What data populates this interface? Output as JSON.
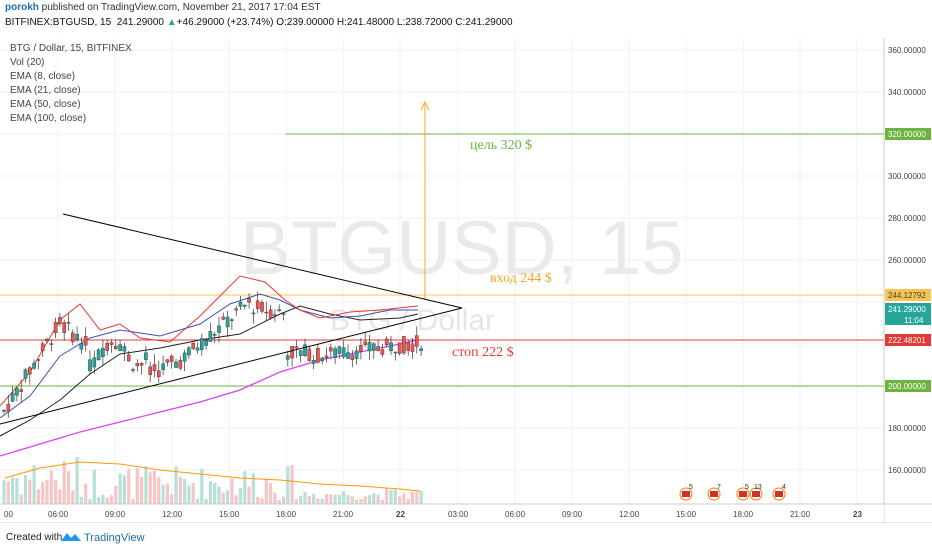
{
  "header": {
    "author": "porokh",
    "publish_text": "published on TradingView.com, November 21, 2017 17:04 EST",
    "symbol": "BITFINEX:BTGUSD, 15",
    "last": "241.29000",
    "change_arrow": "▲",
    "change": "+46.29000 (+23.74%)",
    "open": "O:239.00000",
    "high": "H:241.48000",
    "low": "L:238.72000",
    "close": "C:241.29000"
  },
  "legend": [
    "BTG / Dollar, 15, BITFINEX",
    "Vol (20)",
    "EMA (8, close)",
    "EMA (21, close)",
    "EMA (50, close)",
    "EMA (100, close)"
  ],
  "watermark": {
    "symbol": "BTGUSD, 15",
    "name": "BTG / Dollar"
  },
  "price_axis": {
    "ticks": [
      "360.00000",
      "340.00000",
      "320.00000",
      "300.00000",
      "280.00000",
      "260.00000",
      "244.12792",
      "241.29000",
      "11:04",
      "222.48201",
      "200.00000",
      "180.00000",
      "160.00000"
    ],
    "tick_values": [
      360,
      340,
      320,
      300,
      280,
      260,
      180,
      160
    ]
  },
  "time_axis": {
    "labels": [
      "00",
      "06:00",
      "09:00",
      "12:00",
      "15:00",
      "18:00",
      "21:00",
      "22",
      "03:00",
      "06:00",
      "09:00",
      "12:00",
      "15:00",
      "18:00",
      "21:00",
      "23"
    ]
  },
  "levels": {
    "target": {
      "value": 320,
      "label": "цель 320 $",
      "color": "#6cb33f"
    },
    "entry": {
      "value": 244.12792,
      "label": "вход 244 $",
      "color": "#f5a623"
    },
    "stop": {
      "value": 222.48201,
      "label": "стоп 222 $",
      "color": "#e53935"
    },
    "support": {
      "value": 200,
      "color": "#6cb33f"
    }
  },
  "price_labels": {
    "target": "320.00000",
    "entry": "244.12792",
    "current": "241.29000",
    "countdown": "11:04",
    "stop": "222.48201",
    "support": "200.00000"
  },
  "events": [
    "5",
    "7",
    "5",
    "13",
    "4"
  ],
  "footer": {
    "created": "Created with",
    "brand": "TradingView"
  },
  "colors": {
    "up": "#26a69a",
    "down": "#ef5350",
    "ema100": "#e040fb",
    "ema50": "#222222",
    "ema21": "#3f51b5",
    "ema8": "#e53935",
    "vol_ma": "#ff9800"
  }
}
